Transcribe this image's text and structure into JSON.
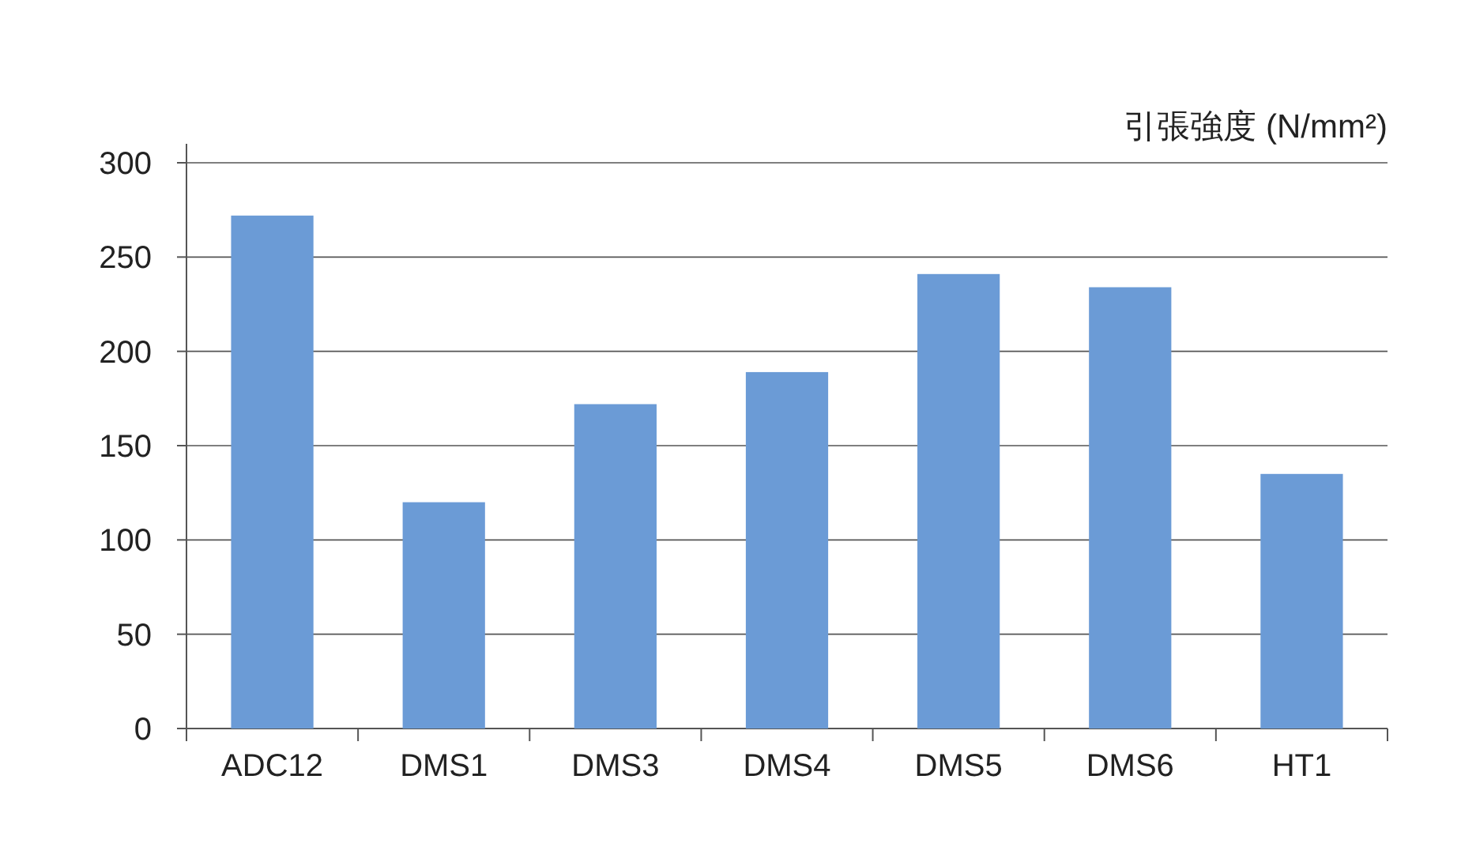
{
  "chart_data": {
    "type": "bar",
    "ylabel": "引張強度 (N/mm²)",
    "categories": [
      "ADC12",
      "DMS1",
      "DMS3",
      "DMS4",
      "DMS5",
      "DMS6",
      "HT1"
    ],
    "values": [
      272,
      120,
      172,
      189,
      241,
      234,
      135
    ],
    "color": "#6b9bd6",
    "ylim": [
      0,
      300
    ],
    "yticks": [
      0,
      50,
      100,
      150,
      200,
      250,
      300
    ],
    "grid": "y"
  }
}
